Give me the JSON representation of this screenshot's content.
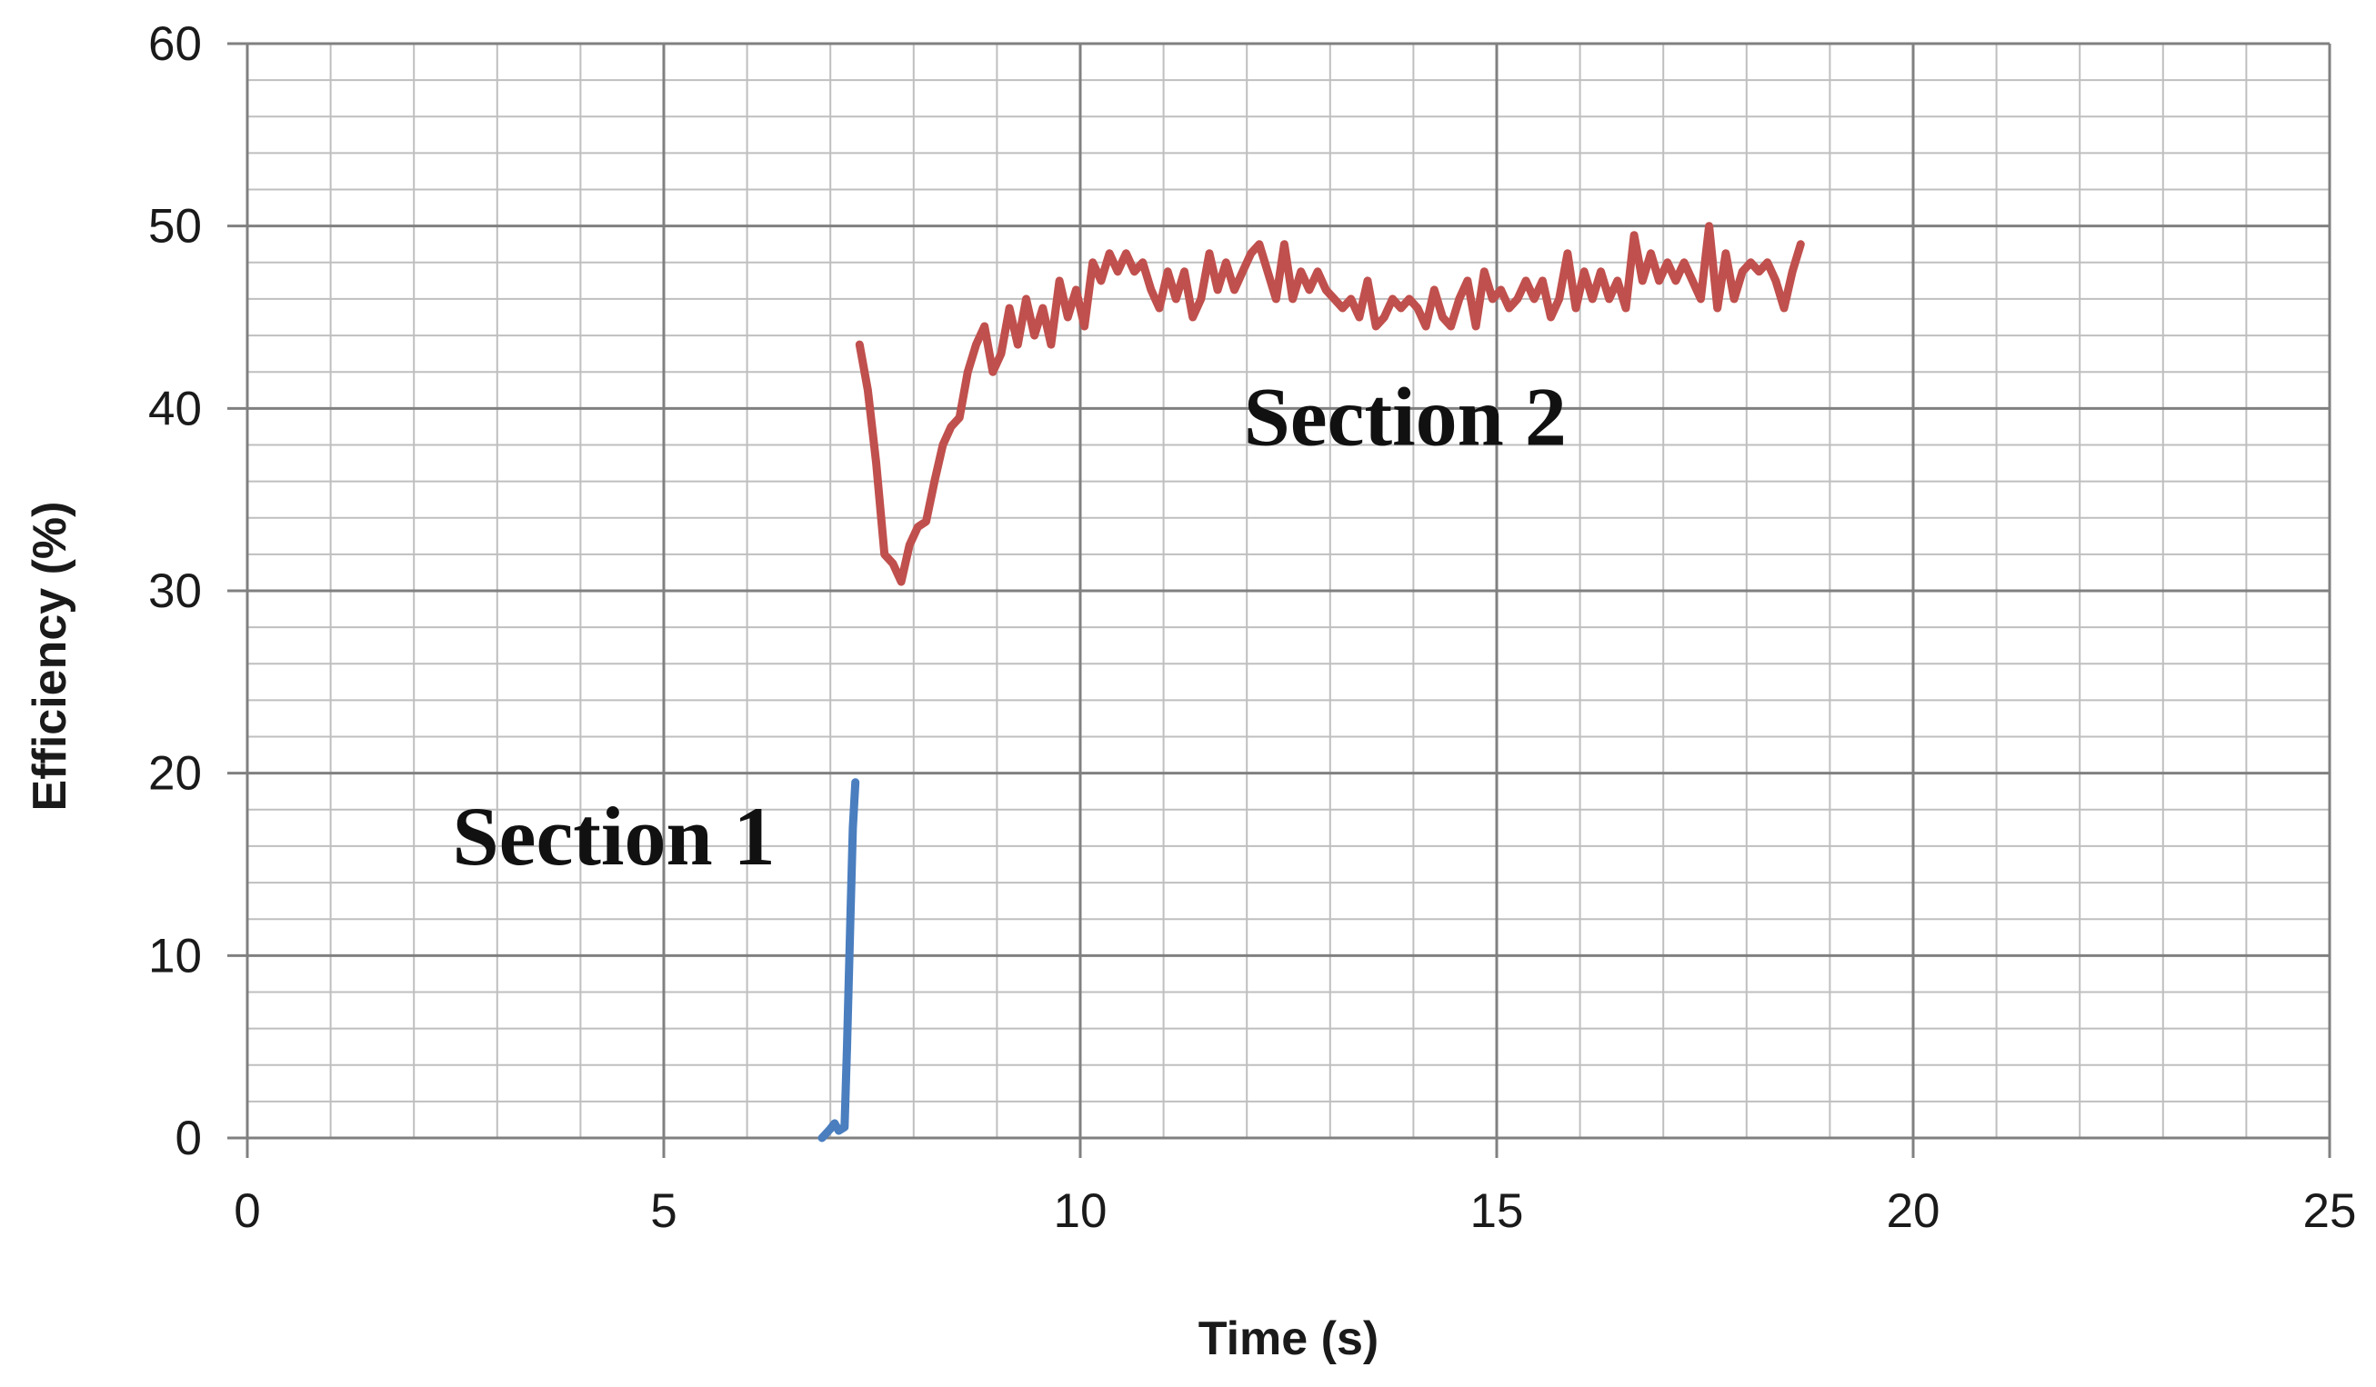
{
  "chart_data": {
    "type": "line",
    "xlabel": "Time (s)",
    "ylabel": "Efficiency (%)",
    "xlim": [
      0,
      25
    ],
    "ylim": [
      0,
      60
    ],
    "x_ticks": [
      0,
      5,
      10,
      15,
      20,
      25
    ],
    "y_ticks": [
      0,
      10,
      20,
      30,
      40,
      50,
      60
    ],
    "x_tick_labels": [
      "0",
      "5",
      "10",
      "15",
      "20",
      "25"
    ],
    "y_tick_labels": [
      "0",
      "10",
      "20",
      "30",
      "40",
      "50",
      "60"
    ],
    "grid": true,
    "minor_grid": {
      "x_step": 1,
      "y_step": 2
    },
    "colors": {
      "section1": "#4a7ebf",
      "section2": "#c0504d",
      "major_grid": "#808080",
      "minor_grid": "#bfbfbf"
    },
    "annotations": [
      {
        "text": "Section 1",
        "x": 4.4,
        "y": 15
      },
      {
        "text": "Section 2",
        "x": 13.9,
        "y": 38
      }
    ],
    "series": [
      {
        "points": [
          [
            6.9,
            0
          ],
          [
            7.0,
            0.5
          ],
          [
            7.05,
            0.8
          ],
          [
            7.1,
            0.4
          ],
          [
            7.17,
            0.6
          ],
          [
            7.2,
            5
          ],
          [
            7.24,
            12
          ],
          [
            7.27,
            17
          ],
          [
            7.3,
            19.5
          ]
        ]
      },
      {
        "points": [
          [
            7.35,
            43.5
          ],
          [
            7.45,
            41
          ],
          [
            7.55,
            37
          ],
          [
            7.65,
            32
          ],
          [
            7.75,
            31.5
          ],
          [
            7.85,
            30.5
          ],
          [
            7.95,
            32.5
          ],
          [
            8.05,
            33.5
          ],
          [
            8.15,
            33.8
          ],
          [
            8.25,
            36
          ],
          [
            8.35,
            38
          ],
          [
            8.45,
            39
          ],
          [
            8.55,
            39.5
          ],
          [
            8.65,
            42
          ],
          [
            8.75,
            43.5
          ],
          [
            8.85,
            44.5
          ],
          [
            8.95,
            42
          ],
          [
            9.05,
            43
          ],
          [
            9.15,
            45.5
          ],
          [
            9.25,
            43.5
          ],
          [
            9.35,
            46
          ],
          [
            9.45,
            44
          ],
          [
            9.55,
            45.5
          ],
          [
            9.65,
            43.5
          ],
          [
            9.75,
            47
          ],
          [
            9.85,
            45
          ],
          [
            9.95,
            46.5
          ],
          [
            10.05,
            44.5
          ],
          [
            10.15,
            48
          ],
          [
            10.25,
            47
          ],
          [
            10.35,
            48.5
          ],
          [
            10.45,
            47.5
          ],
          [
            10.55,
            48.5
          ],
          [
            10.65,
            47.5
          ],
          [
            10.75,
            48
          ],
          [
            10.85,
            46.5
          ],
          [
            10.95,
            45.5
          ],
          [
            11.05,
            47.5
          ],
          [
            11.15,
            46
          ],
          [
            11.25,
            47.5
          ],
          [
            11.35,
            45
          ],
          [
            11.45,
            46
          ],
          [
            11.55,
            48.5
          ],
          [
            11.65,
            46.5
          ],
          [
            11.75,
            48
          ],
          [
            11.85,
            46.5
          ],
          [
            11.95,
            47.5
          ],
          [
            12.05,
            48.5
          ],
          [
            12.15,
            49
          ],
          [
            12.25,
            47.5
          ],
          [
            12.35,
            46
          ],
          [
            12.45,
            49
          ],
          [
            12.55,
            46
          ],
          [
            12.65,
            47.5
          ],
          [
            12.75,
            46.5
          ],
          [
            12.85,
            47.5
          ],
          [
            12.95,
            46.5
          ],
          [
            13.05,
            46
          ],
          [
            13.15,
            45.5
          ],
          [
            13.25,
            46
          ],
          [
            13.35,
            45
          ],
          [
            13.45,
            47
          ],
          [
            13.55,
            44.5
          ],
          [
            13.65,
            45
          ],
          [
            13.75,
            46
          ],
          [
            13.85,
            45.5
          ],
          [
            13.95,
            46
          ],
          [
            14.05,
            45.5
          ],
          [
            14.15,
            44.5
          ],
          [
            14.25,
            46.5
          ],
          [
            14.35,
            45
          ],
          [
            14.45,
            44.5
          ],
          [
            14.55,
            46
          ],
          [
            14.65,
            47
          ],
          [
            14.75,
            44.5
          ],
          [
            14.85,
            47.5
          ],
          [
            14.95,
            46
          ],
          [
            15.05,
            46.5
          ],
          [
            15.15,
            45.5
          ],
          [
            15.25,
            46
          ],
          [
            15.35,
            47
          ],
          [
            15.45,
            46
          ],
          [
            15.55,
            47
          ],
          [
            15.65,
            45
          ],
          [
            15.75,
            46
          ],
          [
            15.85,
            48.5
          ],
          [
            15.95,
            45.5
          ],
          [
            16.05,
            47.5
          ],
          [
            16.15,
            46
          ],
          [
            16.25,
            47.5
          ],
          [
            16.35,
            46
          ],
          [
            16.45,
            47
          ],
          [
            16.55,
            45.5
          ],
          [
            16.65,
            49.5
          ],
          [
            16.75,
            47
          ],
          [
            16.85,
            48.5
          ],
          [
            16.95,
            47
          ],
          [
            17.05,
            48
          ],
          [
            17.15,
            47
          ],
          [
            17.25,
            48
          ],
          [
            17.35,
            47
          ],
          [
            17.45,
            46
          ],
          [
            17.55,
            50
          ],
          [
            17.65,
            45.5
          ],
          [
            17.75,
            48.5
          ],
          [
            17.85,
            46
          ],
          [
            17.95,
            47.5
          ],
          [
            18.05,
            48
          ],
          [
            18.15,
            47.5
          ],
          [
            18.25,
            48
          ],
          [
            18.35,
            47
          ],
          [
            18.45,
            45.5
          ],
          [
            18.55,
            47.5
          ],
          [
            18.65,
            49
          ]
        ]
      }
    ]
  }
}
